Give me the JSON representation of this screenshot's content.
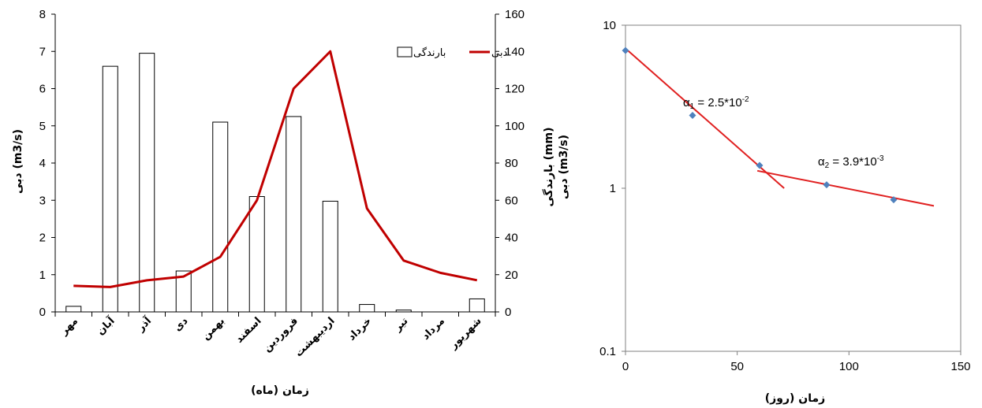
{
  "chart_data": [
    {
      "type": "bar",
      "categories": [
        "مهر",
        "آبان",
        "آذر",
        "دی",
        "بهمن",
        "اسفند",
        "فروردین",
        "اردیبهشت",
        "خرداد",
        "تیر",
        "مرداد",
        "شهریور"
      ],
      "xlabel": "زمان (ماه)",
      "ylabel_left": "دبی (m3/s)",
      "ylabel_right": [
        "بارندگی (mm)",
        "دبی (m3/s)"
      ],
      "ylim_left": [
        0,
        8
      ],
      "ylim_right": [
        0,
        160
      ],
      "left_ticks": [
        "0",
        "1",
        "2",
        "3",
        "4",
        "5",
        "6",
        "7",
        "8"
      ],
      "right_ticks": [
        "0",
        "20",
        "40",
        "60",
        "80",
        "100",
        "120",
        "140",
        "160"
      ],
      "legend": {
        "bar_label": "بارندگی",
        "line_label": "دبی",
        "placement": "top-right"
      },
      "series": [
        {
          "name": "بارندگی",
          "type": "bar",
          "axis": "right",
          "values": [
            3,
            132,
            139,
            22,
            102,
            62,
            105,
            59.5,
            4,
            1,
            0,
            7
          ]
        },
        {
          "name": "دبی",
          "type": "line",
          "axis": "left",
          "color": "#c00000",
          "values": [
            0.7,
            0.67,
            0.85,
            0.95,
            1.48,
            3.0,
            6.0,
            7.0,
            2.78,
            1.38,
            1.05,
            0.85
          ]
        }
      ]
    },
    {
      "type": "scatter",
      "xlabel": "زمان (روز)",
      "xlim": [
        0,
        150
      ],
      "ylim": [
        0.1,
        10
      ],
      "yscale": "log",
      "x_ticks": [
        "0",
        "50",
        "100",
        "150"
      ],
      "y_ticks": [
        "10",
        "1",
        "0.1"
      ],
      "points": {
        "color": "#4f81bd",
        "x": [
          0,
          30,
          60,
          90,
          120
        ],
        "y": [
          7.0,
          2.8,
          1.38,
          1.05,
          0.85
        ]
      },
      "trend_lines": [
        {
          "color": "#e02020",
          "x": [
            0,
            71
          ],
          "y": [
            7.2,
            1.0
          ]
        },
        {
          "color": "#e02020",
          "x": [
            59,
            138
          ],
          "y": [
            1.28,
            0.78
          ]
        }
      ],
      "annotations": [
        {
          "base": "α",
          "sub": "1",
          "text": " = 2.5*10",
          "sup": "-2"
        },
        {
          "base": "α",
          "sub": "2",
          "text": " = 3.9*10",
          "sup": "-3"
        }
      ]
    }
  ]
}
